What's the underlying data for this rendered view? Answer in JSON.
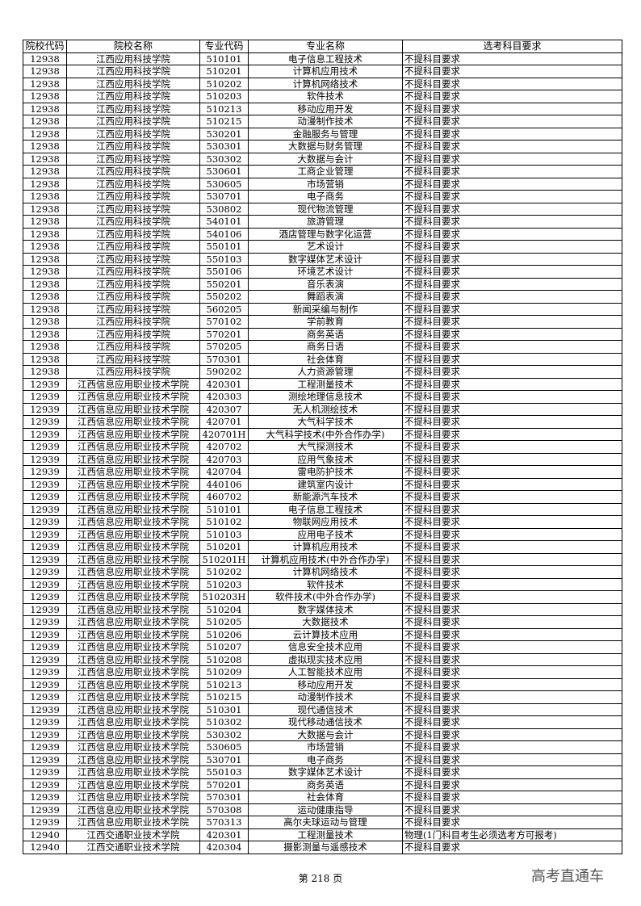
{
  "table": {
    "headers": [
      "院校代码",
      "院校名称",
      "专业代码",
      "专业名称",
      "选考科目要求"
    ],
    "rows": [
      [
        "12938",
        "江西应用科技学院",
        "510101",
        "电子信息工程技术",
        "不提科目要求"
      ],
      [
        "12938",
        "江西应用科技学院",
        "510201",
        "计算机应用技术",
        "不提科目要求"
      ],
      [
        "12938",
        "江西应用科技学院",
        "510202",
        "计算机网络技术",
        "不提科目要求"
      ],
      [
        "12938",
        "江西应用科技学院",
        "510203",
        "软件技术",
        "不提科目要求"
      ],
      [
        "12938",
        "江西应用科技学院",
        "510213",
        "移动应用开发",
        "不提科目要求"
      ],
      [
        "12938",
        "江西应用科技学院",
        "510215",
        "动漫制作技术",
        "不提科目要求"
      ],
      [
        "12938",
        "江西应用科技学院",
        "530201",
        "金融服务与管理",
        "不提科目要求"
      ],
      [
        "12938",
        "江西应用科技学院",
        "530301",
        "大数据与财务管理",
        "不提科目要求"
      ],
      [
        "12938",
        "江西应用科技学院",
        "530302",
        "大数据与会计",
        "不提科目要求"
      ],
      [
        "12938",
        "江西应用科技学院",
        "530601",
        "工商企业管理",
        "不提科目要求"
      ],
      [
        "12938",
        "江西应用科技学院",
        "530605",
        "市场营销",
        "不提科目要求"
      ],
      [
        "12938",
        "江西应用科技学院",
        "530701",
        "电子商务",
        "不提科目要求"
      ],
      [
        "12938",
        "江西应用科技学院",
        "530802",
        "现代物流管理",
        "不提科目要求"
      ],
      [
        "12938",
        "江西应用科技学院",
        "540101",
        "旅游管理",
        "不提科目要求"
      ],
      [
        "12938",
        "江西应用科技学院",
        "540106",
        "酒店管理与数字化运营",
        "不提科目要求"
      ],
      [
        "12938",
        "江西应用科技学院",
        "550101",
        "艺术设计",
        "不提科目要求"
      ],
      [
        "12938",
        "江西应用科技学院",
        "550103",
        "数字媒体艺术设计",
        "不提科目要求"
      ],
      [
        "12938",
        "江西应用科技学院",
        "550106",
        "环境艺术设计",
        "不提科目要求"
      ],
      [
        "12938",
        "江西应用科技学院",
        "550201",
        "音乐表演",
        "不提科目要求"
      ],
      [
        "12938",
        "江西应用科技学院",
        "550202",
        "舞蹈表演",
        "不提科目要求"
      ],
      [
        "12938",
        "江西应用科技学院",
        "560205",
        "新闻采编与制作",
        "不提科目要求"
      ],
      [
        "12938",
        "江西应用科技学院",
        "570102",
        "学前教育",
        "不提科目要求"
      ],
      [
        "12938",
        "江西应用科技学院",
        "570201",
        "商务英语",
        "不提科目要求"
      ],
      [
        "12938",
        "江西应用科技学院",
        "570205",
        "商务日语",
        "不提科目要求"
      ],
      [
        "12938",
        "江西应用科技学院",
        "570301",
        "社会体育",
        "不提科目要求"
      ],
      [
        "12938",
        "江西应用科技学院",
        "590202",
        "人力资源管理",
        "不提科目要求"
      ],
      [
        "12939",
        "江西信息应用职业技术学院",
        "420301",
        "工程测量技术",
        "不提科目要求"
      ],
      [
        "12939",
        "江西信息应用职业技术学院",
        "420303",
        "测绘地理信息技术",
        "不提科目要求"
      ],
      [
        "12939",
        "江西信息应用职业技术学院",
        "420307",
        "无人机测绘技术",
        "不提科目要求"
      ],
      [
        "12939",
        "江西信息应用职业技术学院",
        "420701",
        "大气科学技术",
        "不提科目要求"
      ],
      [
        "12939",
        "江西信息应用职业技术学院",
        "420701H",
        "大气科学技术(中外合作办学)",
        "不提科目要求"
      ],
      [
        "12939",
        "江西信息应用职业技术学院",
        "420702",
        "大气探测技术",
        "不提科目要求"
      ],
      [
        "12939",
        "江西信息应用职业技术学院",
        "420703",
        "应用气象技术",
        "不提科目要求"
      ],
      [
        "12939",
        "江西信息应用职业技术学院",
        "420704",
        "雷电防护技术",
        "不提科目要求"
      ],
      [
        "12939",
        "江西信息应用职业技术学院",
        "440106",
        "建筑室内设计",
        "不提科目要求"
      ],
      [
        "12939",
        "江西信息应用职业技术学院",
        "460702",
        "新能源汽车技术",
        "不提科目要求"
      ],
      [
        "12939",
        "江西信息应用职业技术学院",
        "510101",
        "电子信息工程技术",
        "不提科目要求"
      ],
      [
        "12939",
        "江西信息应用职业技术学院",
        "510102",
        "物联网应用技术",
        "不提科目要求"
      ],
      [
        "12939",
        "江西信息应用职业技术学院",
        "510103",
        "应用电子技术",
        "不提科目要求"
      ],
      [
        "12939",
        "江西信息应用职业技术学院",
        "510201",
        "计算机应用技术",
        "不提科目要求"
      ],
      [
        "12939",
        "江西信息应用职业技术学院",
        "510201H",
        "计算机应用技术(中外合作办学)",
        "不提科目要求"
      ],
      [
        "12939",
        "江西信息应用职业技术学院",
        "510202",
        "计算机网络技术",
        "不提科目要求"
      ],
      [
        "12939",
        "江西信息应用职业技术学院",
        "510203",
        "软件技术",
        "不提科目要求"
      ],
      [
        "12939",
        "江西信息应用职业技术学院",
        "510203H",
        "软件技术(中外合作办学)",
        "不提科目要求"
      ],
      [
        "12939",
        "江西信息应用职业技术学院",
        "510204",
        "数字媒体技术",
        "不提科目要求"
      ],
      [
        "12939",
        "江西信息应用职业技术学院",
        "510205",
        "大数据技术",
        "不提科目要求"
      ],
      [
        "12939",
        "江西信息应用职业技术学院",
        "510206",
        "云计算技术应用",
        "不提科目要求"
      ],
      [
        "12939",
        "江西信息应用职业技术学院",
        "510207",
        "信息安全技术应用",
        "不提科目要求"
      ],
      [
        "12939",
        "江西信息应用职业技术学院",
        "510208",
        "虚拟现实技术应用",
        "不提科目要求"
      ],
      [
        "12939",
        "江西信息应用职业技术学院",
        "510209",
        "人工智能技术应用",
        "不提科目要求"
      ],
      [
        "12939",
        "江西信息应用职业技术学院",
        "510213",
        "移动应用开发",
        "不提科目要求"
      ],
      [
        "12939",
        "江西信息应用职业技术学院",
        "510215",
        "动漫制作技术",
        "不提科目要求"
      ],
      [
        "12939",
        "江西信息应用职业技术学院",
        "510301",
        "现代通信技术",
        "不提科目要求"
      ],
      [
        "12939",
        "江西信息应用职业技术学院",
        "510302",
        "现代移动通信技术",
        "不提科目要求"
      ],
      [
        "12939",
        "江西信息应用职业技术学院",
        "530302",
        "大数据与会计",
        "不提科目要求"
      ],
      [
        "12939",
        "江西信息应用职业技术学院",
        "530605",
        "市场营销",
        "不提科目要求"
      ],
      [
        "12939",
        "江西信息应用职业技术学院",
        "530701",
        "电子商务",
        "不提科目要求"
      ],
      [
        "12939",
        "江西信息应用职业技术学院",
        "550103",
        "数字媒体艺术设计",
        "不提科目要求"
      ],
      [
        "12939",
        "江西信息应用职业技术学院",
        "570201",
        "商务英语",
        "不提科目要求"
      ],
      [
        "12939",
        "江西信息应用职业技术学院",
        "570301",
        "社会体育",
        "不提科目要求"
      ],
      [
        "12939",
        "江西信息应用职业技术学院",
        "570308",
        "运动健康指导",
        "不提科目要求"
      ],
      [
        "12939",
        "江西信息应用职业技术学院",
        "570313",
        "高尔夫球运动与管理",
        "不提科目要求"
      ],
      [
        "12940",
        "江西交通职业技术学院",
        "420301",
        "工程测量技术",
        "物理(1门科目考生必须选考方可报考)"
      ],
      [
        "12940",
        "江西交通职业技术学院",
        "420304",
        "摄影测量与遥感技术",
        "不提科目要求"
      ]
    ]
  },
  "footer": {
    "page_label": "第 218 页"
  },
  "brand": {
    "text": "高考直通车"
  }
}
